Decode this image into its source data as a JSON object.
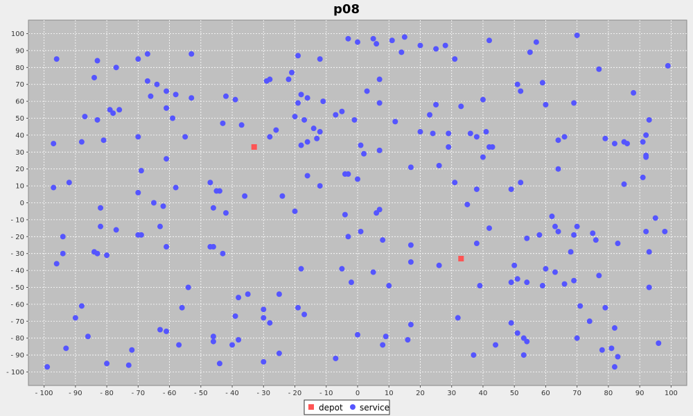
{
  "chart_data": {
    "type": "scatter",
    "title": "p08",
    "xlim": [
      -105,
      105
    ],
    "ylim": [
      -108,
      108
    ],
    "xticks": [
      -100,
      -90,
      -80,
      -70,
      -60,
      -50,
      -40,
      -30,
      -20,
      -10,
      0,
      10,
      20,
      30,
      40,
      50,
      60,
      70,
      80,
      90,
      100
    ],
    "yticks": [
      -100,
      -90,
      -80,
      -70,
      -60,
      -50,
      -40,
      -30,
      -20,
      -10,
      0,
      10,
      20,
      30,
      40,
      50,
      60,
      70,
      80,
      90,
      100
    ],
    "grid": true,
    "legend_position": "bottom-center",
    "series": [
      {
        "name": "depot",
        "color": "#ff5555",
        "marker": "square",
        "points": [
          [
            -33,
            33
          ],
          [
            33,
            -33
          ]
        ]
      },
      {
        "name": "service",
        "color": "#5555ff",
        "marker": "circle",
        "points": [
          [
            -96,
            85
          ],
          [
            -84,
            74
          ],
          [
            -83,
            84
          ],
          [
            -77,
            80
          ],
          [
            -70,
            85
          ],
          [
            -67,
            88
          ],
          [
            -53,
            88
          ],
          [
            -67,
            72
          ],
          [
            -64,
            70
          ],
          [
            -66,
            63
          ],
          [
            -61,
            66
          ],
          [
            -58,
            64
          ],
          [
            -53,
            62
          ],
          [
            -61,
            56
          ],
          [
            -59,
            50
          ],
          [
            -87,
            51
          ],
          [
            -79,
            55
          ],
          [
            -78,
            53
          ],
          [
            -76,
            55
          ],
          [
            -83,
            49
          ],
          [
            -97,
            35
          ],
          [
            -88,
            36
          ],
          [
            -81,
            37
          ],
          [
            -70,
            39
          ],
          [
            -55,
            39
          ],
          [
            -61,
            26
          ],
          [
            -69,
            19
          ],
          [
            -97,
            9
          ],
          [
            -92,
            12
          ],
          [
            -70,
            6
          ],
          [
            -65,
            0
          ],
          [
            -62,
            -2
          ],
          [
            -58,
            9
          ],
          [
            -82,
            -3
          ],
          [
            -82,
            -14
          ],
          [
            -77,
            -16
          ],
          [
            -70,
            -19
          ],
          [
            -69,
            -19
          ],
          [
            -63,
            -14
          ],
          [
            -94,
            -20
          ],
          [
            -61,
            -26
          ],
          [
            -94,
            -30
          ],
          [
            -96,
            -36
          ],
          [
            -84,
            -29
          ],
          [
            -83,
            -30
          ],
          [
            -80,
            -31
          ],
          [
            -54,
            -50
          ],
          [
            -88,
            -61
          ],
          [
            -90,
            -68
          ],
          [
            -56,
            -62
          ],
          [
            -63,
            -75
          ],
          [
            -61,
            -76
          ],
          [
            -86,
            -79
          ],
          [
            -93,
            -86
          ],
          [
            -57,
            -84
          ],
          [
            -80,
            -95
          ],
          [
            -72,
            -87
          ],
          [
            -73,
            -96
          ],
          [
            -99,
            -97
          ],
          [
            -42,
            63
          ],
          [
            -39,
            61
          ],
          [
            -43,
            47
          ],
          [
            -37,
            46
          ],
          [
            -29,
            72
          ],
          [
            -28,
            73
          ],
          [
            -21,
            77
          ],
          [
            -22,
            73
          ],
          [
            -19,
            87
          ],
          [
            -18,
            64
          ],
          [
            -19,
            59
          ],
          [
            -16,
            62
          ],
          [
            -12,
            85
          ],
          [
            -11,
            60
          ],
          [
            -20,
            51
          ],
          [
            -17,
            49
          ],
          [
            -14,
            44
          ],
          [
            -12,
            42
          ],
          [
            -26,
            43
          ],
          [
            -28,
            39
          ],
          [
            -18,
            34
          ],
          [
            -16,
            36
          ],
          [
            -13,
            38
          ],
          [
            -47,
            12
          ],
          [
            -45,
            7
          ],
          [
            -44,
            7
          ],
          [
            -36,
            4
          ],
          [
            -24,
            4
          ],
          [
            -16,
            16
          ],
          [
            -12,
            10
          ],
          [
            -46,
            -3
          ],
          [
            -42,
            -6
          ],
          [
            -20,
            -5
          ],
          [
            -47,
            -26
          ],
          [
            -46,
            -26
          ],
          [
            -43,
            -30
          ],
          [
            -38,
            -56
          ],
          [
            -35,
            -54
          ],
          [
            -25,
            -54
          ],
          [
            -39,
            -67
          ],
          [
            -30,
            -63
          ],
          [
            -30,
            -68
          ],
          [
            -28,
            -71
          ],
          [
            -19,
            -62
          ],
          [
            -17,
            -66
          ],
          [
            -18,
            -39
          ],
          [
            -46,
            -79
          ],
          [
            -46,
            -82
          ],
          [
            -38,
            -81
          ],
          [
            -40,
            -84
          ],
          [
            -44,
            -95
          ],
          [
            -30,
            -94
          ],
          [
            -25,
            -89
          ],
          [
            -3,
            97
          ],
          [
            0,
            95
          ],
          [
            5,
            97
          ],
          [
            6,
            94
          ],
          [
            11,
            96
          ],
          [
            15,
            98
          ],
          [
            14,
            89
          ],
          [
            20,
            93
          ],
          [
            25,
            91
          ],
          [
            28,
            93
          ],
          [
            31,
            85
          ],
          [
            42,
            96
          ],
          [
            57,
            95
          ],
          [
            55,
            89
          ],
          [
            70,
            99
          ],
          [
            99,
            81
          ],
          [
            7,
            73
          ],
          [
            3,
            66
          ],
          [
            7,
            59
          ],
          [
            12,
            48
          ],
          [
            -7,
            52
          ],
          [
            -5,
            54
          ],
          [
            -1,
            49
          ],
          [
            25,
            58
          ],
          [
            23,
            52
          ],
          [
            33,
            57
          ],
          [
            40,
            61
          ],
          [
            51,
            70
          ],
          [
            52,
            66
          ],
          [
            59,
            71
          ],
          [
            60,
            58
          ],
          [
            69,
            59
          ],
          [
            77,
            79
          ],
          [
            88,
            65
          ],
          [
            20,
            42
          ],
          [
            24,
            41
          ],
          [
            29,
            41
          ],
          [
            36,
            41
          ],
          [
            38,
            39
          ],
          [
            41,
            42
          ],
          [
            29,
            33
          ],
          [
            42,
            33
          ],
          [
            43,
            33
          ],
          [
            40,
            27
          ],
          [
            66,
            39
          ],
          [
            64,
            37
          ],
          [
            79,
            38
          ],
          [
            82,
            35
          ],
          [
            85,
            36
          ],
          [
            86,
            35
          ],
          [
            92,
            40
          ],
          [
            91,
            36
          ],
          [
            93,
            49
          ],
          [
            92,
            28
          ],
          [
            92,
            27
          ],
          [
            1,
            34
          ],
          [
            2,
            29
          ],
          [
            7,
            31
          ],
          [
            -4,
            17
          ],
          [
            -3,
            17
          ],
          [
            0,
            14
          ],
          [
            17,
            21
          ],
          [
            26,
            22
          ],
          [
            31,
            12
          ],
          [
            38,
            8
          ],
          [
            49,
            8
          ],
          [
            52,
            12
          ],
          [
            64,
            20
          ],
          [
            85,
            11
          ],
          [
            91,
            15
          ],
          [
            -4,
            -7
          ],
          [
            6,
            -6
          ],
          [
            7,
            -4
          ],
          [
            35,
            -1
          ],
          [
            1,
            -17
          ],
          [
            -3,
            -20
          ],
          [
            8,
            -22
          ],
          [
            42,
            -15
          ],
          [
            54,
            -21
          ],
          [
            58,
            -19
          ],
          [
            62,
            -8
          ],
          [
            63,
            -14
          ],
          [
            64,
            -17
          ],
          [
            69,
            -19
          ],
          [
            70,
            -14
          ],
          [
            75,
            -18
          ],
          [
            76,
            -22
          ],
          [
            83,
            -24
          ],
          [
            92,
            -17
          ],
          [
            95,
            -9
          ],
          [
            98,
            -17
          ],
          [
            17,
            -25
          ],
          [
            38,
            -24
          ],
          [
            68,
            -29
          ],
          [
            93,
            -29
          ],
          [
            -5,
            -39
          ],
          [
            5,
            -41
          ],
          [
            17,
            -35
          ],
          [
            26,
            -37
          ],
          [
            50,
            -37
          ],
          [
            60,
            -39
          ],
          [
            63,
            -41
          ],
          [
            77,
            -43
          ],
          [
            -2,
            -47
          ],
          [
            10,
            -49
          ],
          [
            39,
            -49
          ],
          [
            49,
            -47
          ],
          [
            51,
            -45
          ],
          [
            54,
            -47
          ],
          [
            59,
            -49
          ],
          [
            66,
            -48
          ],
          [
            69,
            -46
          ],
          [
            93,
            -50
          ],
          [
            17,
            -72
          ],
          [
            32,
            -68
          ],
          [
            49,
            -71
          ],
          [
            71,
            -61
          ],
          [
            74,
            -70
          ],
          [
            79,
            -62
          ],
          [
            82,
            -74
          ],
          [
            0,
            -78
          ],
          [
            9,
            -79
          ],
          [
            16,
            -81
          ],
          [
            8,
            -84
          ],
          [
            -7,
            -92
          ],
          [
            37,
            -90
          ],
          [
            44,
            -84
          ],
          [
            51,
            -77
          ],
          [
            53,
            -80
          ],
          [
            54,
            -82
          ],
          [
            53,
            -90
          ],
          [
            70,
            -80
          ],
          [
            78,
            -87
          ],
          [
            81,
            -86
          ],
          [
            83,
            -91
          ],
          [
            82,
            -97
          ],
          [
            96,
            -83
          ]
        ]
      }
    ]
  }
}
